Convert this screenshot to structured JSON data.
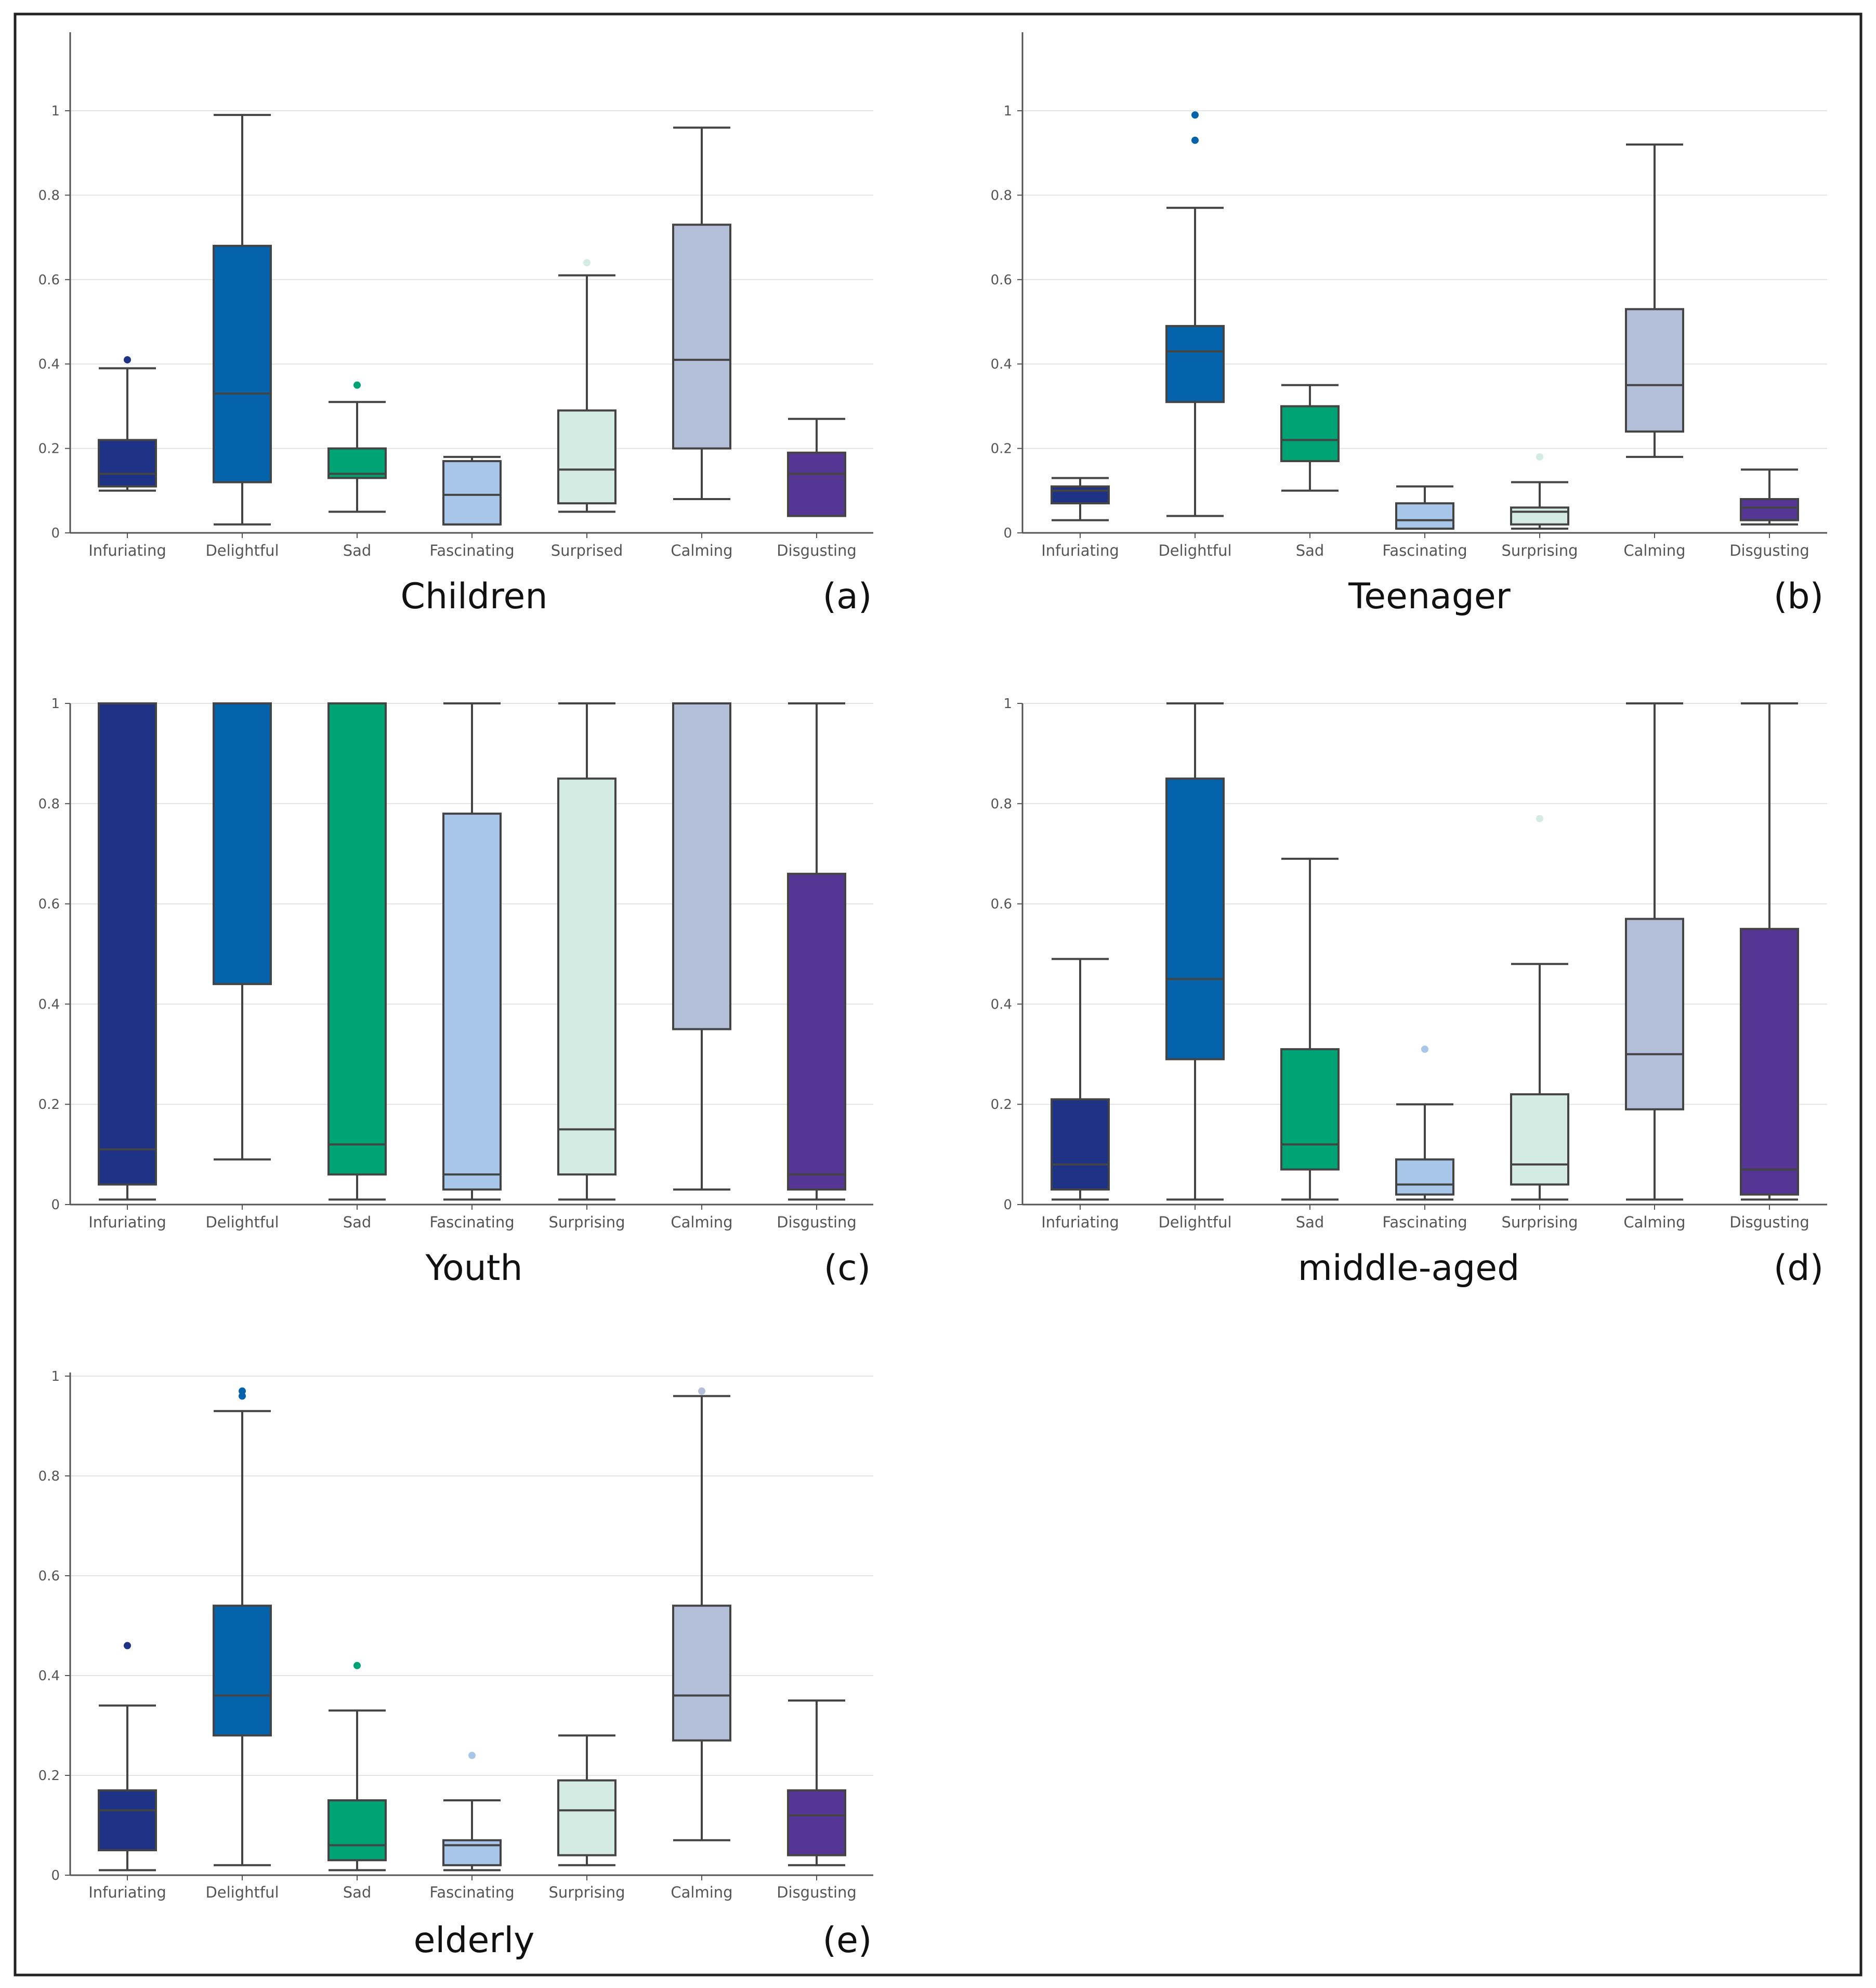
{
  "figure": {
    "panel_count": 5
  },
  "colors": {
    "infuriating": "#1f3386",
    "delightful": "#0563ac",
    "sad": "#00a374",
    "fascinating": "#a8c6ea",
    "surprised": "#d4ebe3",
    "calming": "#b3bed9",
    "disgusting": "#553694",
    "whisker": "#444444",
    "axis": "#555555",
    "grid": "#e3e3e3",
    "frame": "#222222"
  },
  "chart_data": [
    {
      "type": "box",
      "title": "Children",
      "letter": "(a)",
      "ylim": [
        0,
        1.15
      ],
      "yticks": [
        0,
        0.2,
        0.4,
        0.6,
        0.8,
        1
      ],
      "ytick_labels": [
        "0",
        "0.2",
        "0.4",
        "0.6",
        "0.8",
        "1"
      ],
      "categories": [
        "Infuriating",
        "Delightful",
        "Sad",
        "Fascinating",
        "Surprised",
        "Calming",
        "Disgusting"
      ],
      "color_keys": [
        "infuriating",
        "delightful",
        "sad",
        "fascinating",
        "surprised",
        "calming",
        "disgusting"
      ],
      "boxes": [
        {
          "whislo": 0.1,
          "q1": 0.11,
          "med": 0.14,
          "q3": 0.22,
          "whishi": 0.39,
          "fliers": [
            0.41
          ]
        },
        {
          "whislo": 0.02,
          "q1": 0.12,
          "med": 0.33,
          "q3": 0.68,
          "whishi": 0.99,
          "fliers": []
        },
        {
          "whislo": 0.05,
          "q1": 0.13,
          "med": 0.14,
          "q3": 0.2,
          "whishi": 0.31,
          "fliers": [
            0.35
          ]
        },
        {
          "whislo": 0.02,
          "q1": 0.02,
          "med": 0.09,
          "q3": 0.17,
          "whishi": 0.18,
          "fliers": []
        },
        {
          "whislo": 0.05,
          "q1": 0.07,
          "med": 0.15,
          "q3": 0.29,
          "whishi": 0.61,
          "fliers": [
            0.64
          ]
        },
        {
          "whislo": 0.08,
          "q1": 0.2,
          "med": 0.41,
          "q3": 0.73,
          "whishi": 0.96,
          "fliers": []
        },
        {
          "whislo": 0.04,
          "q1": 0.04,
          "med": 0.14,
          "q3": 0.19,
          "whishi": 0.27,
          "fliers": []
        }
      ]
    },
    {
      "type": "box",
      "title": "Teenager",
      "letter": "(b)",
      "ylim": [
        0,
        1.15
      ],
      "yticks": [
        0,
        0.2,
        0.4,
        0.6,
        0.8,
        1
      ],
      "ytick_labels": [
        "0",
        "0.2",
        "0.4",
        "0.6",
        "0.8",
        "1"
      ],
      "categories": [
        "Infuriating",
        "Delightful",
        "Sad",
        "Fascinating",
        "Surprising",
        "Calming",
        "Disgusting"
      ],
      "color_keys": [
        "infuriating",
        "delightful",
        "sad",
        "fascinating",
        "surprised",
        "calming",
        "disgusting"
      ],
      "boxes": [
        {
          "whislo": 0.03,
          "q1": 0.07,
          "med": 0.1,
          "q3": 0.11,
          "whishi": 0.13,
          "fliers": []
        },
        {
          "whislo": 0.04,
          "q1": 0.31,
          "med": 0.43,
          "q3": 0.49,
          "whishi": 0.77,
          "fliers": [
            0.93,
            0.99
          ]
        },
        {
          "whislo": 0.1,
          "q1": 0.17,
          "med": 0.22,
          "q3": 0.3,
          "whishi": 0.35,
          "fliers": []
        },
        {
          "whislo": 0.01,
          "q1": 0.01,
          "med": 0.03,
          "q3": 0.07,
          "whishi": 0.11,
          "fliers": []
        },
        {
          "whislo": 0.01,
          "q1": 0.02,
          "med": 0.05,
          "q3": 0.06,
          "whishi": 0.12,
          "fliers": [
            0.18
          ]
        },
        {
          "whislo": 0.18,
          "q1": 0.24,
          "med": 0.35,
          "q3": 0.53,
          "whishi": 0.92,
          "fliers": []
        },
        {
          "whislo": 0.02,
          "q1": 0.03,
          "med": 0.06,
          "q3": 0.08,
          "whishi": 0.15,
          "fliers": []
        }
      ]
    },
    {
      "type": "box",
      "title": "Youth",
      "letter": "(c)",
      "ylim": [
        0,
        1
      ],
      "yticks": [
        0,
        0.2,
        0.4,
        0.6,
        0.8,
        1
      ],
      "ytick_labels": [
        "0",
        "0.2",
        "0.4",
        "0.6",
        "0.8",
        "1"
      ],
      "categories": [
        "Infuriating",
        "Delightful",
        "Sad",
        "Fascinating",
        "Surprising",
        "Calming",
        "Disgusting"
      ],
      "color_keys": [
        "infuriating",
        "delightful",
        "sad",
        "fascinating",
        "surprised",
        "calming",
        "disgusting"
      ],
      "boxes": [
        {
          "whislo": 0.01,
          "q1": 0.04,
          "med": 0.11,
          "q3": 1.0,
          "whishi": 1.0,
          "fliers": []
        },
        {
          "whislo": 0.09,
          "q1": 0.44,
          "med": 1.0,
          "q3": 1.0,
          "whishi": 1.0,
          "fliers": []
        },
        {
          "whislo": 0.01,
          "q1": 0.06,
          "med": 0.12,
          "q3": 1.0,
          "whishi": 1.0,
          "fliers": []
        },
        {
          "whislo": 0.01,
          "q1": 0.03,
          "med": 0.06,
          "q3": 0.78,
          "whishi": 1.0,
          "fliers": []
        },
        {
          "whislo": 0.01,
          "q1": 0.06,
          "med": 0.15,
          "q3": 0.85,
          "whishi": 1.0,
          "fliers": []
        },
        {
          "whislo": 0.03,
          "q1": 0.35,
          "med": 1.0,
          "q3": 1.0,
          "whishi": 1.0,
          "fliers": []
        },
        {
          "whislo": 0.01,
          "q1": 0.03,
          "med": 0.06,
          "q3": 0.66,
          "whishi": 1.0,
          "fliers": []
        }
      ]
    },
    {
      "type": "box",
      "title": "middle-aged",
      "letter": "(d)",
      "ylim": [
        0,
        1
      ],
      "yticks": [
        0,
        0.2,
        0.4,
        0.6,
        0.8,
        1
      ],
      "ytick_labels": [
        "0",
        "0.2",
        "0.4",
        "0.6",
        "0.8",
        "1"
      ],
      "categories": [
        "Infuriating",
        "Delightful",
        "Sad",
        "Fascinating",
        "Surprising",
        "Calming",
        "Disgusting"
      ],
      "color_keys": [
        "infuriating",
        "delightful",
        "sad",
        "fascinating",
        "surprised",
        "calming",
        "disgusting"
      ],
      "boxes": [
        {
          "whislo": 0.01,
          "q1": 0.03,
          "med": 0.08,
          "q3": 0.21,
          "whishi": 0.49,
          "fliers": []
        },
        {
          "whislo": 0.01,
          "q1": 0.29,
          "med": 0.45,
          "q3": 0.85,
          "whishi": 1.0,
          "fliers": []
        },
        {
          "whislo": 0.01,
          "q1": 0.07,
          "med": 0.12,
          "q3": 0.31,
          "whishi": 0.69,
          "fliers": []
        },
        {
          "whislo": 0.01,
          "q1": 0.02,
          "med": 0.04,
          "q3": 0.09,
          "whishi": 0.2,
          "fliers": [
            0.31
          ]
        },
        {
          "whislo": 0.01,
          "q1": 0.04,
          "med": 0.08,
          "q3": 0.22,
          "whishi": 0.48,
          "fliers": [
            0.77
          ]
        },
        {
          "whislo": 0.01,
          "q1": 0.19,
          "med": 0.3,
          "q3": 0.57,
          "whishi": 1.0,
          "fliers": []
        },
        {
          "whislo": 0.01,
          "q1": 0.02,
          "med": 0.07,
          "q3": 0.55,
          "whishi": 1.0,
          "fliers": []
        }
      ]
    },
    {
      "type": "box",
      "title": "elderly",
      "letter": "(e)",
      "ylim": [
        0,
        1
      ],
      "yticks": [
        0,
        0.2,
        0.4,
        0.6,
        0.8,
        1
      ],
      "ytick_labels": [
        "0",
        "0.2",
        "0.4",
        "0.6",
        "0.8",
        "1"
      ],
      "categories": [
        "Infuriating",
        "Delightful",
        "Sad",
        "Fascinating",
        "Surprising",
        "Calming",
        "Disgusting"
      ],
      "color_keys": [
        "infuriating",
        "delightful",
        "sad",
        "fascinating",
        "surprised",
        "calming",
        "disgusting"
      ],
      "boxes": [
        {
          "whislo": 0.01,
          "q1": 0.05,
          "med": 0.13,
          "q3": 0.17,
          "whishi": 0.34,
          "fliers": [
            0.46
          ]
        },
        {
          "whislo": 0.02,
          "q1": 0.28,
          "med": 0.36,
          "q3": 0.54,
          "whishi": 0.93,
          "fliers": [
            0.96,
            0.97
          ]
        },
        {
          "whislo": 0.01,
          "q1": 0.03,
          "med": 0.06,
          "q3": 0.15,
          "whishi": 0.33,
          "fliers": [
            0.42
          ]
        },
        {
          "whislo": 0.01,
          "q1": 0.02,
          "med": 0.06,
          "q3": 0.07,
          "whishi": 0.15,
          "fliers": [
            0.24
          ]
        },
        {
          "whislo": 0.02,
          "q1": 0.04,
          "med": 0.13,
          "q3": 0.19,
          "whishi": 0.28,
          "fliers": []
        },
        {
          "whislo": 0.07,
          "q1": 0.27,
          "med": 0.36,
          "q3": 0.54,
          "whishi": 0.96,
          "fliers": [
            0.97
          ]
        },
        {
          "whislo": 0.02,
          "q1": 0.04,
          "med": 0.12,
          "q3": 0.17,
          "whishi": 0.35,
          "fliers": []
        }
      ]
    }
  ]
}
